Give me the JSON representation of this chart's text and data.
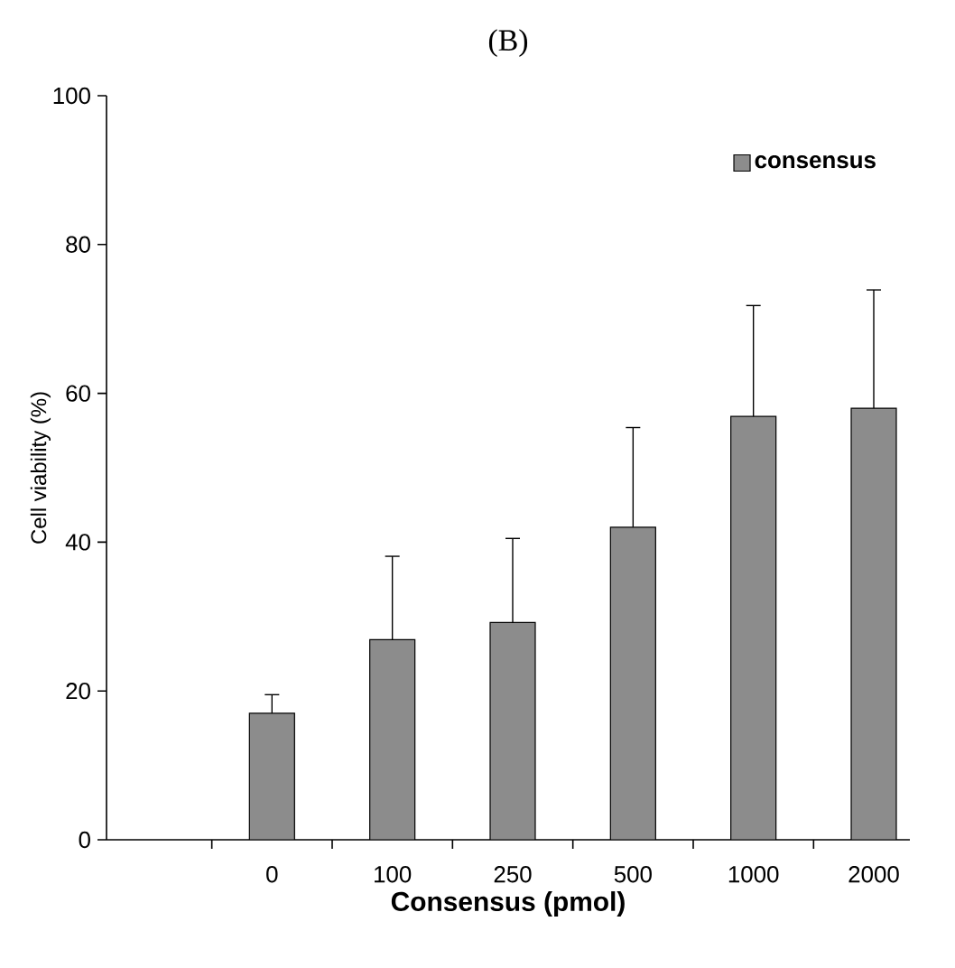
{
  "chart_data": {
    "type": "bar",
    "title": "(B)",
    "xlabel": "Consensus (pmol)",
    "ylabel": "Cell viability (%)",
    "categories": [
      null,
      "0",
      "100",
      "250",
      "500",
      "1000",
      "2000"
    ],
    "series": [
      {
        "name": "consensus",
        "color": "#8c8c8c",
        "values": [
          null,
          17.0,
          26.9,
          29.2,
          42.0,
          56.9,
          58.0
        ],
        "errors": [
          null,
          [
            17.0,
            19.5
          ],
          [
            26.9,
            38.1
          ],
          [
            29.2,
            40.5
          ],
          [
            42.0,
            55.4
          ],
          [
            56.9,
            71.8
          ],
          [
            58.0,
            73.9
          ]
        ]
      }
    ],
    "ylim": [
      0,
      100
    ],
    "yticks": [
      0,
      20,
      40,
      60,
      80,
      100
    ],
    "legend": "top right",
    "grid": false
  }
}
